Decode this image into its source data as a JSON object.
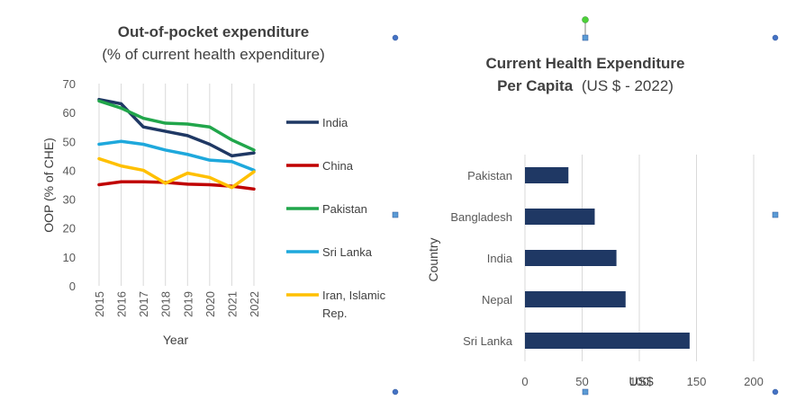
{
  "chart_data": [
    {
      "type": "line",
      "title": "Out-of-pocket expenditure",
      "subtitle": "(% of current health expenditure)",
      "xlabel": "Year",
      "ylabel": "OOP (% of CHE)",
      "x": [
        "2015",
        "2016",
        "2017",
        "2018",
        "2019",
        "2020",
        "2021",
        "2022"
      ],
      "ylim": [
        0,
        70
      ],
      "yticks": [
        "0",
        "10",
        "20",
        "30",
        "40",
        "50",
        "60",
        "70"
      ],
      "grid": true,
      "legend_position": "right",
      "series": [
        {
          "name": "India",
          "color": "#1f3864",
          "values": [
            64.5,
            63,
            55,
            53.5,
            52,
            49,
            45,
            46
          ]
        },
        {
          "name": "China",
          "color": "#c00000",
          "values": [
            35,
            36,
            36,
            35.8,
            35.2,
            35,
            34.5,
            33.5
          ]
        },
        {
          "name": "Pakistan",
          "color": "#21a64b",
          "values": [
            64,
            61.5,
            58,
            56.3,
            56,
            55,
            50.5,
            47
          ]
        },
        {
          "name": "Sri Lanka",
          "color": "#1ea8dc",
          "values": [
            49,
            50,
            49,
            47,
            45.5,
            43.5,
            43,
            40
          ]
        },
        {
          "name": "Iran, Islamic Rep.",
          "color": "#ffc000",
          "values": [
            44,
            41.5,
            40,
            35.5,
            39,
            37.5,
            34,
            39.5
          ]
        }
      ]
    },
    {
      "type": "bar",
      "orientation": "horizontal",
      "title": "Current Health Expenditure",
      "title_line2_bold": "Per Capita",
      "title_line2_normal": "(US $ - 2022)",
      "xlabel": "US$",
      "ylabel": "Country",
      "categories": [
        "Pakistan",
        "Bangladesh",
        "India",
        "Nepal",
        "Sri Lanka"
      ],
      "values": [
        38,
        61,
        80,
        88,
        144
      ],
      "xlim": [
        0,
        200
      ],
      "xticks": [
        "0",
        "50",
        "100",
        "150",
        "200"
      ],
      "grid": true,
      "bar_color": "#1f3864"
    }
  ]
}
